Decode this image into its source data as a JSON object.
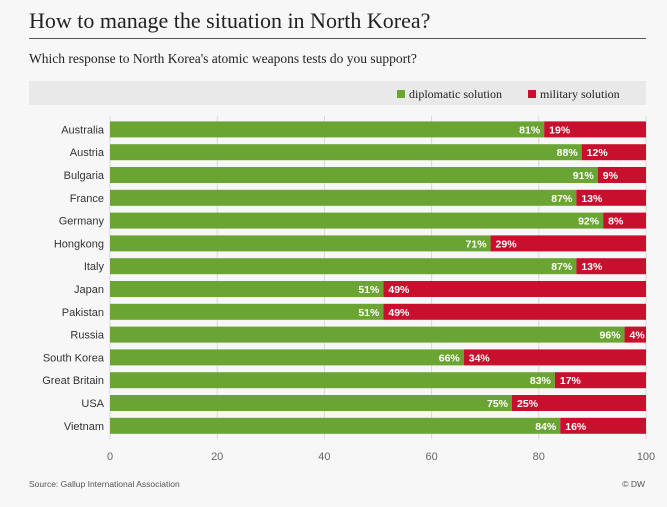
{
  "colors": {
    "diplomatic": "#6aa533",
    "military": "#c8102e"
  },
  "footer": {
    "source": "Source: Gallup International Association",
    "credit": "© DW"
  },
  "chart_data": {
    "type": "bar",
    "orientation": "horizontal",
    "stacked": true,
    "title": "How to manage the situation in North Korea?",
    "subtitle": "Which response to North Korea's atomic weapons tests do you support?",
    "legend_position": "top-right",
    "categories": [
      "Australia",
      "Austria",
      "Bulgaria",
      "France",
      "Germany",
      "Hongkong",
      "Italy",
      "Japan",
      "Pakistan",
      "Russia",
      "South Korea",
      "Great Britain",
      "USA",
      "Vietnam"
    ],
    "series": [
      {
        "name": "diplomatic solution",
        "values": [
          81,
          88,
          91,
          87,
          92,
          71,
          87,
          51,
          51,
          96,
          66,
          83,
          75,
          84
        ]
      },
      {
        "name": "military solution",
        "values": [
          19,
          12,
          9,
          13,
          8,
          29,
          13,
          49,
          49,
          4,
          34,
          17,
          25,
          16
        ]
      }
    ],
    "value_suffix": "%",
    "xlim": [
      0,
      100
    ],
    "xticks": [
      0,
      20,
      40,
      60,
      80,
      100
    ],
    "grid": true
  }
}
